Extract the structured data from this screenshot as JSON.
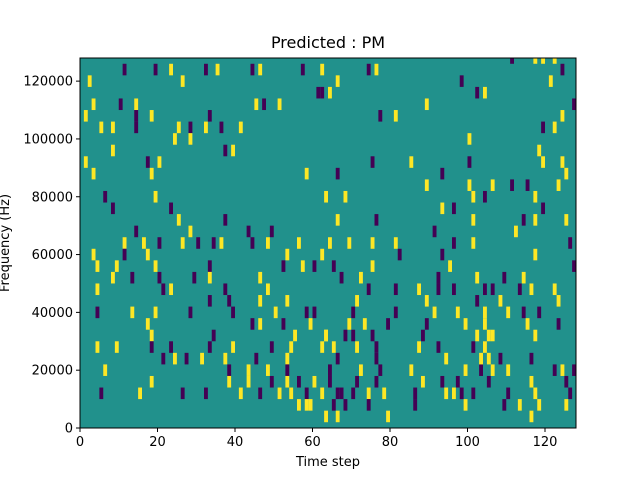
{
  "chart_data": {
    "type": "heatmap",
    "title": "Predicted : PM",
    "xlabel": "Time step",
    "ylabel": "Frequency (Hz)",
    "xlim": [
      0,
      128
    ],
    "ylim": [
      0,
      128000
    ],
    "x_ticks": [
      0,
      20,
      40,
      60,
      80,
      100,
      120
    ],
    "x_tick_labels": [
      "0",
      "20",
      "40",
      "60",
      "80",
      "100",
      "120"
    ],
    "y_ticks": [
      0,
      20000,
      40000,
      60000,
      80000,
      100000,
      120000
    ],
    "y_tick_labels": [
      "0",
      "20000",
      "40000",
      "60000",
      "80000",
      "100000",
      "120000"
    ],
    "grid": false,
    "colormap": "viridis",
    "value_levels": [
      -1,
      0,
      1
    ],
    "colors": {
      "low": "#440154",
      "mid": "#21918c",
      "high": "#fde725"
    },
    "bin_width_x": 1,
    "bin_height_hz": 4000,
    "background_value": 0,
    "cells": [
      [
        11,
        122000,
        -1
      ],
      [
        19,
        122000,
        -1
      ],
      [
        23,
        122000,
        1
      ],
      [
        32,
        122000,
        -1
      ],
      [
        35,
        122000,
        1
      ],
      [
        44,
        122000,
        -1
      ],
      [
        46,
        122000,
        1
      ],
      [
        57,
        122000,
        -1
      ],
      [
        62,
        122000,
        1
      ],
      [
        74,
        122000,
        -1
      ],
      [
        76,
        122000,
        1
      ],
      [
        111,
        126000,
        -1
      ],
      [
        117,
        126000,
        1
      ],
      [
        119,
        126000,
        1
      ],
      [
        122,
        126000,
        1
      ],
      [
        124,
        122000,
        -1
      ],
      [
        2,
        118000,
        1
      ],
      [
        26,
        118000,
        1
      ],
      [
        66,
        118000,
        1
      ],
      [
        98,
        118000,
        -1
      ],
      [
        121,
        118000,
        1
      ],
      [
        61,
        114000,
        -1
      ],
      [
        62,
        114000,
        -1
      ],
      [
        64,
        114000,
        1
      ],
      [
        102,
        114000,
        -1
      ],
      [
        104,
        114000,
        1
      ],
      [
        3,
        110000,
        1
      ],
      [
        10,
        110000,
        -1
      ],
      [
        14,
        110000,
        1
      ],
      [
        45,
        110000,
        1
      ],
      [
        47,
        110000,
        -1
      ],
      [
        51,
        110000,
        1
      ],
      [
        89,
        110000,
        1
      ],
      [
        127,
        110000,
        -1
      ],
      [
        1,
        106000,
        1
      ],
      [
        14,
        106000,
        -1
      ],
      [
        18,
        106000,
        1
      ],
      [
        33,
        106000,
        -1
      ],
      [
        77,
        106000,
        -1
      ],
      [
        81,
        106000,
        1
      ],
      [
        124,
        106000,
        1
      ],
      [
        5,
        102000,
        1
      ],
      [
        8,
        102000,
        1
      ],
      [
        14,
        102000,
        -1
      ],
      [
        25,
        102000,
        1
      ],
      [
        28,
        102000,
        -1
      ],
      [
        32,
        102000,
        1
      ],
      [
        36,
        102000,
        -1
      ],
      [
        41,
        102000,
        1
      ],
      [
        119,
        102000,
        -1
      ],
      [
        122,
        102000,
        1
      ],
      [
        24,
        98000,
        1
      ],
      [
        28,
        98000,
        1
      ],
      [
        100,
        98000,
        1
      ],
      [
        8,
        94000,
        1
      ],
      [
        37,
        94000,
        -1
      ],
      [
        39,
        94000,
        1
      ],
      [
        118,
        94000,
        1
      ],
      [
        1,
        90000,
        1
      ],
      [
        17,
        90000,
        -1
      ],
      [
        20,
        90000,
        1
      ],
      [
        75,
        90000,
        -1
      ],
      [
        85,
        90000,
        1
      ],
      [
        100,
        90000,
        -1
      ],
      [
        119,
        90000,
        1
      ],
      [
        124,
        90000,
        1
      ],
      [
        3,
        86000,
        1
      ],
      [
        18,
        86000,
        1
      ],
      [
        58,
        86000,
        1
      ],
      [
        66,
        86000,
        -1
      ],
      [
        93,
        86000,
        -1
      ],
      [
        125,
        86000,
        1
      ],
      [
        89,
        82000,
        1
      ],
      [
        100,
        82000,
        1
      ],
      [
        106,
        82000,
        1
      ],
      [
        111,
        82000,
        -1
      ],
      [
        115,
        82000,
        -1
      ],
      [
        123,
        82000,
        1
      ],
      [
        6,
        78000,
        -1
      ],
      [
        19,
        78000,
        1
      ],
      [
        63,
        78000,
        1
      ],
      [
        68,
        78000,
        1
      ],
      [
        101,
        78000,
        1
      ],
      [
        104,
        78000,
        -1
      ],
      [
        117,
        78000,
        1
      ],
      [
        8,
        74000,
        -1
      ],
      [
        23,
        74000,
        -1
      ],
      [
        93,
        74000,
        1
      ],
      [
        96,
        74000,
        -1
      ],
      [
        119,
        74000,
        -1
      ],
      [
        25,
        70000,
        1
      ],
      [
        37,
        70000,
        -1
      ],
      [
        66,
        70000,
        1
      ],
      [
        76,
        70000,
        -1
      ],
      [
        101,
        70000,
        1
      ],
      [
        114,
        70000,
        -1
      ],
      [
        117,
        70000,
        1
      ],
      [
        125,
        70000,
        1
      ],
      [
        14,
        66000,
        -1
      ],
      [
        28,
        66000,
        1
      ],
      [
        43,
        66000,
        -1
      ],
      [
        49,
        66000,
        -1
      ],
      [
        91,
        66000,
        -1
      ],
      [
        112,
        66000,
        1
      ],
      [
        11,
        62000,
        1
      ],
      [
        16,
        62000,
        1
      ],
      [
        20,
        62000,
        -1
      ],
      [
        26,
        62000,
        1
      ],
      [
        30,
        62000,
        -1
      ],
      [
        34,
        62000,
        -1
      ],
      [
        36,
        62000,
        1
      ],
      [
        44,
        62000,
        -1
      ],
      [
        48,
        62000,
        1
      ],
      [
        56,
        62000,
        1
      ],
      [
        64,
        62000,
        1
      ],
      [
        69,
        62000,
        1
      ],
      [
        75,
        62000,
        1
      ],
      [
        81,
        62000,
        1
      ],
      [
        96,
        62000,
        -1
      ],
      [
        101,
        62000,
        1
      ],
      [
        126,
        62000,
        -1
      ],
      [
        3,
        58000,
        1
      ],
      [
        11,
        58000,
        -1
      ],
      [
        17,
        58000,
        1
      ],
      [
        53,
        58000,
        1
      ],
      [
        62,
        58000,
        1
      ],
      [
        82,
        58000,
        -1
      ],
      [
        93,
        58000,
        -1
      ],
      [
        117,
        58000,
        1
      ],
      [
        4,
        54000,
        1
      ],
      [
        9,
        54000,
        1
      ],
      [
        19,
        54000,
        1
      ],
      [
        33,
        54000,
        -1
      ],
      [
        52,
        54000,
        -1
      ],
      [
        57,
        54000,
        1
      ],
      [
        60,
        54000,
        -1
      ],
      [
        65,
        54000,
        -1
      ],
      [
        75,
        54000,
        1
      ],
      [
        95,
        54000,
        1
      ],
      [
        127,
        54000,
        -1
      ],
      [
        8,
        50000,
        1
      ],
      [
        13,
        50000,
        -1
      ],
      [
        20,
        50000,
        -1
      ],
      [
        29,
        50000,
        -1
      ],
      [
        33,
        50000,
        1
      ],
      [
        46,
        50000,
        1
      ],
      [
        67,
        50000,
        -1
      ],
      [
        72,
        50000,
        1
      ],
      [
        92,
        50000,
        -1
      ],
      [
        102,
        50000,
        1
      ],
      [
        109,
        50000,
        -1
      ],
      [
        114,
        50000,
        1
      ],
      [
        4,
        46000,
        1
      ],
      [
        21,
        46000,
        -1
      ],
      [
        23,
        46000,
        1
      ],
      [
        37,
        46000,
        -1
      ],
      [
        48,
        46000,
        1
      ],
      [
        74,
        46000,
        -1
      ],
      [
        81,
        46000,
        -1
      ],
      [
        87,
        46000,
        1
      ],
      [
        92,
        46000,
        -1
      ],
      [
        96,
        46000,
        -1
      ],
      [
        104,
        46000,
        -1
      ],
      [
        106,
        46000,
        -1
      ],
      [
        113,
        46000,
        -1
      ],
      [
        116,
        46000,
        1
      ],
      [
        122,
        46000,
        1
      ],
      [
        33,
        42000,
        -1
      ],
      [
        38,
        42000,
        -1
      ],
      [
        46,
        42000,
        1
      ],
      [
        53,
        42000,
        1
      ],
      [
        71,
        42000,
        1
      ],
      [
        89,
        42000,
        1
      ],
      [
        102,
        42000,
        -1
      ],
      [
        108,
        42000,
        1
      ],
      [
        123,
        42000,
        1
      ],
      [
        4,
        38000,
        -1
      ],
      [
        13,
        38000,
        1
      ],
      [
        19,
        38000,
        1
      ],
      [
        28,
        38000,
        -1
      ],
      [
        39,
        38000,
        -1
      ],
      [
        50,
        38000,
        1
      ],
      [
        58,
        38000,
        -1
      ],
      [
        60,
        38000,
        -1
      ],
      [
        70,
        38000,
        -1
      ],
      [
        81,
        38000,
        -1
      ],
      [
        91,
        38000,
        1
      ],
      [
        97,
        38000,
        1
      ],
      [
        104,
        38000,
        1
      ],
      [
        110,
        38000,
        1
      ],
      [
        114,
        38000,
        -1
      ],
      [
        118,
        38000,
        -1
      ],
      [
        128,
        38000,
        1
      ],
      [
        17,
        34000,
        1
      ],
      [
        44,
        34000,
        -1
      ],
      [
        46,
        34000,
        1
      ],
      [
        52,
        34000,
        -1
      ],
      [
        59,
        34000,
        1
      ],
      [
        69,
        34000,
        1
      ],
      [
        73,
        34000,
        1
      ],
      [
        79,
        34000,
        -1
      ],
      [
        89,
        34000,
        -1
      ],
      [
        99,
        34000,
        1
      ],
      [
        104,
        34000,
        1
      ],
      [
        115,
        34000,
        1
      ],
      [
        123,
        34000,
        -1
      ],
      [
        18,
        30000,
        1
      ],
      [
        34,
        30000,
        -1
      ],
      [
        55,
        30000,
        1
      ],
      [
        63,
        30000,
        1
      ],
      [
        68,
        30000,
        -1
      ],
      [
        70,
        30000,
        -1
      ],
      [
        75,
        30000,
        -1
      ],
      [
        88,
        30000,
        -1
      ],
      [
        102,
        30000,
        1
      ],
      [
        106,
        30000,
        1
      ],
      [
        105,
        30000,
        1
      ],
      [
        4,
        26000,
        1
      ],
      [
        9,
        26000,
        1
      ],
      [
        18,
        26000,
        -1
      ],
      [
        23,
        26000,
        -1
      ],
      [
        33,
        26000,
        -1
      ],
      [
        39,
        26000,
        1
      ],
      [
        49,
        26000,
        -1
      ],
      [
        54,
        26000,
        1
      ],
      [
        62,
        26000,
        1
      ],
      [
        65,
        26000,
        1
      ],
      [
        71,
        26000,
        1
      ],
      [
        76,
        26000,
        -1
      ],
      [
        87,
        26000,
        1
      ],
      [
        92,
        26000,
        -1
      ],
      [
        101,
        26000,
        -1
      ],
      [
        104,
        26000,
        1
      ],
      [
        21,
        22000,
        -1
      ],
      [
        24,
        22000,
        1
      ],
      [
        27,
        22000,
        -1
      ],
      [
        31,
        22000,
        1
      ],
      [
        37,
        22000,
        1
      ],
      [
        45,
        22000,
        -1
      ],
      [
        53,
        22000,
        1
      ],
      [
        66,
        22000,
        -1
      ],
      [
        76,
        22000,
        -1
      ],
      [
        94,
        22000,
        1
      ],
      [
        105,
        22000,
        1
      ],
      [
        108,
        22000,
        -1
      ],
      [
        116,
        22000,
        -1
      ],
      [
        6,
        18000,
        1
      ],
      [
        38,
        18000,
        -1
      ],
      [
        43,
        18000,
        1
      ],
      [
        48,
        18000,
        1
      ],
      [
        53,
        18000,
        -1
      ],
      [
        64,
        18000,
        -1
      ],
      [
        72,
        18000,
        1
      ],
      [
        77,
        18000,
        -1
      ],
      [
        85,
        18000,
        1
      ],
      [
        99,
        18000,
        1
      ],
      [
        103,
        18000,
        -1
      ],
      [
        106,
        18000,
        1
      ],
      [
        110,
        18000,
        1
      ],
      [
        122,
        18000,
        -1
      ],
      [
        124,
        18000,
        1
      ],
      [
        127,
        18000,
        -1
      ],
      [
        18,
        14000,
        1
      ],
      [
        38,
        14000,
        1
      ],
      [
        43,
        14000,
        1
      ],
      [
        49,
        14000,
        -1
      ],
      [
        53,
        14000,
        1
      ],
      [
        56,
        14000,
        -1
      ],
      [
        60,
        14000,
        1
      ],
      [
        64,
        14000,
        -1
      ],
      [
        71,
        14000,
        -1
      ],
      [
        76,
        14000,
        -1
      ],
      [
        88,
        14000,
        1
      ],
      [
        93,
        14000,
        -1
      ],
      [
        97,
        14000,
        -1
      ],
      [
        105,
        14000,
        -1
      ],
      [
        116,
        14000,
        1
      ],
      [
        125,
        14000,
        -1
      ],
      [
        5,
        10000,
        -1
      ],
      [
        15,
        10000,
        1
      ],
      [
        26,
        10000,
        -1
      ],
      [
        32,
        10000,
        -1
      ],
      [
        41,
        10000,
        1
      ],
      [
        46,
        10000,
        -1
      ],
      [
        51,
        10000,
        1
      ],
      [
        54,
        10000,
        1
      ],
      [
        58,
        10000,
        -1
      ],
      [
        66,
        10000,
        -1
      ],
      [
        67,
        10000,
        -1
      ],
      [
        70,
        10000,
        -1
      ],
      [
        74,
        10000,
        1
      ],
      [
        78,
        10000,
        1
      ],
      [
        86,
        10000,
        -1
      ],
      [
        94,
        10000,
        1
      ],
      [
        96,
        10000,
        1
      ],
      [
        98,
        10000,
        -1
      ],
      [
        101,
        10000,
        -1
      ],
      [
        110,
        10000,
        -1
      ],
      [
        117,
        10000,
        1
      ],
      [
        126,
        10000,
        -1
      ],
      [
        56,
        6000,
        1
      ],
      [
        58,
        6000,
        1
      ],
      [
        59,
        6000,
        1
      ],
      [
        65,
        6000,
        -1
      ],
      [
        68,
        6000,
        -1
      ],
      [
        74,
        6000,
        -1
      ],
      [
        86,
        6000,
        -1
      ],
      [
        99,
        6000,
        1
      ],
      [
        109,
        6000,
        -1
      ],
      [
        113,
        6000,
        1
      ],
      [
        118,
        6000,
        1
      ],
      [
        125,
        6000,
        1
      ],
      [
        63,
        2000,
        1
      ],
      [
        66,
        2000,
        1
      ],
      [
        79,
        2000,
        1
      ],
      [
        116,
        2000,
        1
      ],
      [
        117,
        30000,
        1
      ],
      [
        63,
        30000,
        1
      ],
      [
        62,
        10000,
        1
      ],
      [
        103,
        22000,
        1
      ]
    ]
  }
}
